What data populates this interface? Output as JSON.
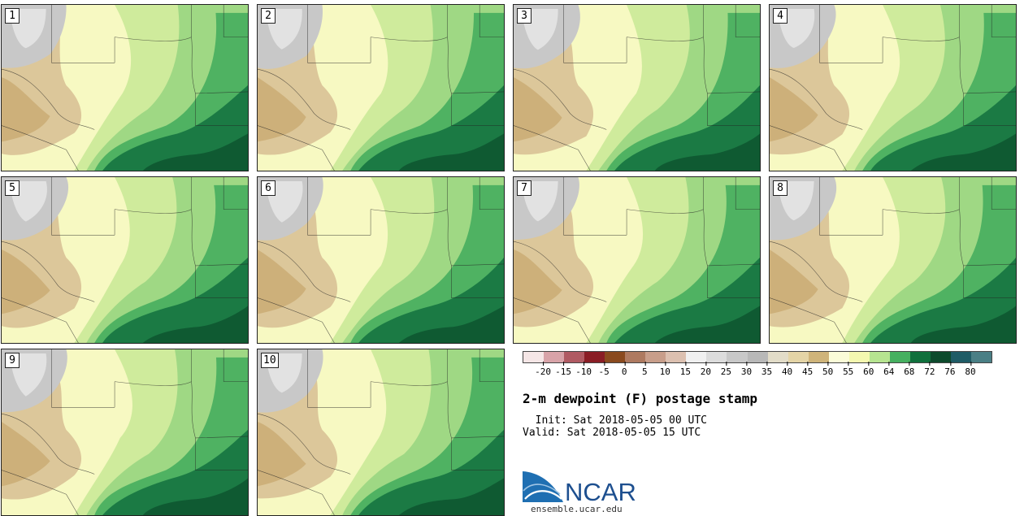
{
  "chart_data": {
    "type": "heatmap",
    "title": "2-m dewpoint (F) postage stamp",
    "init": "  Init: Sat 2018-05-05 00 UTC",
    "valid": "Valid: Sat 2018-05-05 15 UTC",
    "members": [
      {
        "label": "1"
      },
      {
        "label": "2"
      },
      {
        "label": "3"
      },
      {
        "label": "4"
      },
      {
        "label": "5"
      },
      {
        "label": "6"
      },
      {
        "label": "7"
      },
      {
        "label": "8"
      },
      {
        "label": "9"
      },
      {
        "label": "10"
      }
    ],
    "colorbar": {
      "ticks": [
        "-20",
        "-15",
        "-10",
        "-5",
        "0",
        "5",
        "10",
        "15",
        "20",
        "25",
        "30",
        "35",
        "40",
        "45",
        "50",
        "55",
        "60",
        "64",
        "68",
        "72",
        "76",
        "80"
      ],
      "colors": [
        "#f5e6e6",
        "#d8a3a8",
        "#b05a62",
        "#8a1d25",
        "#8a4a1e",
        "#ae7a60",
        "#c89e8a",
        "#dcc0b0",
        "#f0f0f0",
        "#dcdcdc",
        "#c8c8c8",
        "#b8b8b8",
        "#e2dcc8",
        "#e4d4a6",
        "#cfb47a",
        "#fbfcd8",
        "#f4f8b0",
        "#b6e490",
        "#46b060",
        "#10703c",
        "#0d4a2c",
        "#1f5c66",
        "#4a7f85"
      ]
    }
  },
  "branding": {
    "logo_text": "NCAR",
    "url": "ensemble.ucar.edu"
  }
}
